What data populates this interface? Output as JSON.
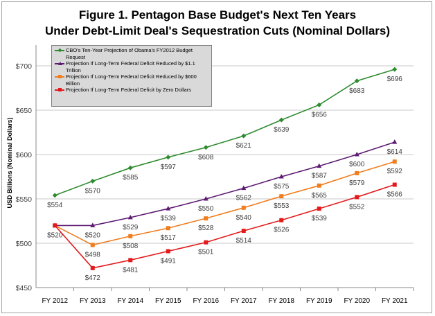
{
  "chart_data": {
    "type": "line",
    "title": "Figure 1.  Pentagon Base Budget's Next Ten Years",
    "subtitle": "Under Debt-Limit Deal's Sequestration Cuts (Nominal Dollars)",
    "xlabel": "",
    "ylabel": "USD Billions (Nominal Dollars)",
    "ylim": [
      450,
      700
    ],
    "yticks": [
      "$450",
      "$500",
      "$550",
      "$600",
      "$650",
      "$700"
    ],
    "ytick_values": [
      450,
      500,
      550,
      600,
      650,
      700
    ],
    "categories": [
      "FY 2012",
      "FY 2013",
      "FY 2014",
      "FY 2015",
      "FY 2016",
      "FY 2017",
      "FY 2018",
      "FY 2019",
      "FY 2020",
      "FY 2021"
    ],
    "grid": "horizontal",
    "legend_placement": "top-left",
    "series": [
      {
        "name": "CBO's Ten-Year Projection of Obama's FY2012 Budget Request",
        "color": "#2e8b2e",
        "marker": "diamond",
        "values": [
          554,
          570,
          585,
          597,
          608,
          621,
          639,
          656,
          683,
          696
        ]
      },
      {
        "name": "Projection If Long-Term Federal Deficit Reduced by $1.1 Trillion",
        "color": "#5c1a72",
        "marker": "triangle",
        "values": [
          520,
          520,
          529,
          539,
          550,
          562,
          575,
          587,
          600,
          614
        ]
      },
      {
        "name": "Projection If Long-Term Federal Deficit Reduced by $600 Billion",
        "color": "#f07d1e",
        "marker": "square",
        "values": [
          520,
          498,
          508,
          517,
          528,
          540,
          553,
          565,
          579,
          592
        ]
      },
      {
        "name": "Projection If Long-Term Federal Deficit by Zero Dollars",
        "color": "#e31a1c",
        "marker": "square",
        "values": [
          520,
          472,
          481,
          491,
          501,
          514,
          526,
          539,
          552,
          566
        ]
      }
    ]
  }
}
